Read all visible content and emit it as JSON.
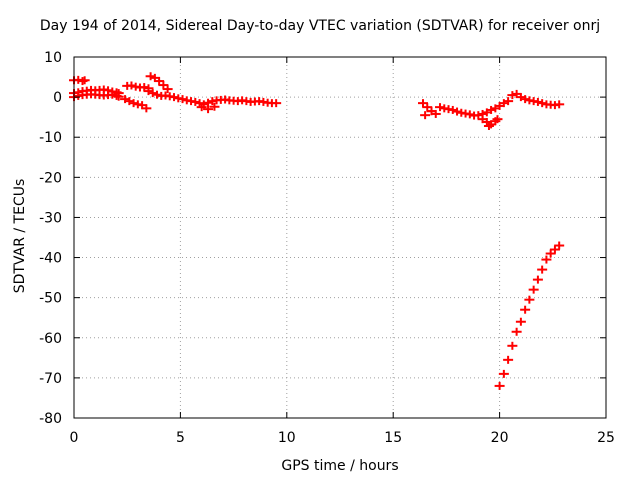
{
  "chart_data": {
    "type": "scatter",
    "title": "Day 194 of 2014, Sidereal Day-to-day VTEC variation (SDTVAR) for receiver onrj",
    "xlabel": "GPS time / hours",
    "ylabel": "SDTVAR / TECUs",
    "xlim": [
      0,
      25
    ],
    "ylim": [
      -80,
      10
    ],
    "xticks": [
      0,
      5,
      10,
      15,
      20,
      25
    ],
    "yticks": [
      10,
      0,
      -10,
      -20,
      -30,
      -40,
      -50,
      -60,
      -70,
      -80
    ],
    "grid": true,
    "marker_color": "#ff0000",
    "series": [
      {
        "name": "SDTVAR",
        "x": [
          0.0,
          0.2,
          0.4,
          0.6,
          0.8,
          1.0,
          1.2,
          1.4,
          1.6,
          1.8,
          2.0,
          2.1,
          0.0,
          0.2,
          0.4,
          0.6,
          0.8,
          1.0,
          1.2,
          1.4,
          1.6,
          1.8,
          2.0,
          2.1,
          0.0,
          0.2,
          0.4,
          0.5,
          2.4,
          2.6,
          2.8,
          3.0,
          3.2,
          3.4,
          2.5,
          2.7,
          2.9,
          3.1,
          3.3,
          3.5,
          3.6,
          3.8,
          4.0,
          4.2,
          4.4,
          3.5,
          3.7,
          3.9,
          4.1,
          4.3,
          4.5,
          4.7,
          4.9,
          5.1,
          5.3,
          5.5,
          5.7,
          5.9,
          6.1,
          6.3,
          6.5,
          6.7,
          6.9,
          7.1,
          7.3,
          7.5,
          7.7,
          7.9,
          8.1,
          8.3,
          8.5,
          8.7,
          8.9,
          9.1,
          9.3,
          9.5,
          6.0,
          6.3,
          6.6,
          16.4,
          16.6,
          16.8,
          17.0,
          16.5,
          16.8,
          17.2,
          17.4,
          17.6,
          17.8,
          18.0,
          18.2,
          18.4,
          18.6,
          18.8,
          19.0,
          19.2,
          19.4,
          19.6,
          19.8,
          20.0,
          20.2,
          20.4,
          20.6,
          20.8,
          21.0,
          21.2,
          21.4,
          21.6,
          21.8,
          22.0,
          22.2,
          22.4,
          22.6,
          22.8,
          19.2,
          19.4,
          19.6,
          19.8,
          19.5,
          19.9,
          20.0,
          20.2,
          20.4,
          20.6,
          20.8,
          21.0,
          21.2,
          21.4,
          21.6,
          21.8,
          22.0,
          22.2,
          22.4,
          22.6,
          22.8
        ],
        "y": [
          1.0,
          1.2,
          1.5,
          1.6,
          1.8,
          1.7,
          1.8,
          1.9,
          1.7,
          1.4,
          1.2,
          1.0,
          0.0,
          0.3,
          0.5,
          0.6,
          0.7,
          0.6,
          0.5,
          0.4,
          0.5,
          0.6,
          0.3,
          0.1,
          4.2,
          4.3,
          4.0,
          4.2,
          -0.5,
          -1.0,
          -1.5,
          -1.8,
          -2.0,
          -2.8,
          2.8,
          2.9,
          2.6,
          2.4,
          2.5,
          2.2,
          5.2,
          4.8,
          4.0,
          3.0,
          2.0,
          1.5,
          1.0,
          0.6,
          0.3,
          0.4,
          0.2,
          0.0,
          -0.3,
          -0.5,
          -0.8,
          -1.0,
          -1.2,
          -1.5,
          -1.8,
          -1.4,
          -1.0,
          -0.8,
          -0.7,
          -0.6,
          -0.8,
          -0.9,
          -1.0,
          -0.8,
          -1.0,
          -1.2,
          -1.1,
          -1.0,
          -1.2,
          -1.4,
          -1.5,
          -1.5,
          -2.5,
          -3.0,
          -2.4,
          -1.5,
          -2.5,
          -3.5,
          -4.2,
          -4.5,
          -3.5,
          -2.5,
          -2.8,
          -3.0,
          -3.2,
          -3.6,
          -3.9,
          -4.1,
          -4.3,
          -4.6,
          -4.5,
          -4.2,
          -3.8,
          -3.2,
          -2.8,
          -2.2,
          -1.5,
          -1.0,
          0.5,
          0.8,
          0.0,
          -0.5,
          -0.8,
          -1.0,
          -1.2,
          -1.5,
          -1.8,
          -1.9,
          -2.0,
          -1.8,
          -5.5,
          -6.2,
          -6.8,
          -6.0,
          -7.2,
          -5.5,
          -72.0,
          -69.0,
          -65.5,
          -62.0,
          -58.5,
          -56.0,
          -53.0,
          -50.5,
          -48.0,
          -45.5,
          -43.0,
          -40.5,
          -39.0,
          -38.0,
          -37.0
        ]
      }
    ]
  }
}
